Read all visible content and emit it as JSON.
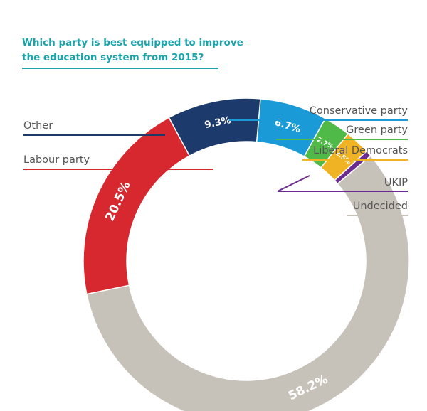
{
  "title": "Which party is best equipped to improve the education system from 2015?",
  "chart_data": {
    "type": "pie",
    "series": [
      {
        "name": "Conservative party",
        "value": 6.7,
        "label": "6.7%",
        "color": "#1a9ad6"
      },
      {
        "name": "Green party",
        "value": 2.7,
        "label": "2.7%",
        "color": "#4fba48"
      },
      {
        "name": "Liberal Democrats",
        "value": 2.5,
        "label": "2.5%",
        "color": "#f0b323"
      },
      {
        "name": "UKIP",
        "value": 0.6,
        "label": "",
        "color": "#6b2c91"
      },
      {
        "name": "Undecided",
        "value": 58.2,
        "label": "58.2%",
        "color": "#c7c2b9"
      },
      {
        "name": "Labour party",
        "value": 20.5,
        "label": "20.5%",
        "color": "#d7282f"
      },
      {
        "name": "Other",
        "value": 9.3,
        "label": "9.3%",
        "color": "#1c3a6b"
      }
    ]
  }
}
